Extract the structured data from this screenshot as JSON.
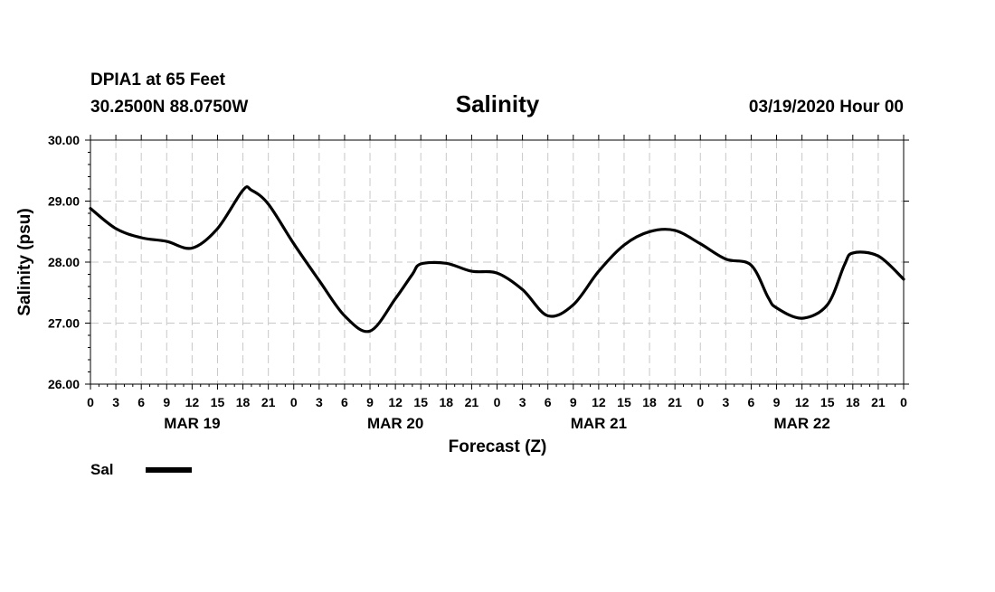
{
  "header": {
    "station": "DPIA1 at 65 Feet",
    "coords": "30.2500N 88.0750W",
    "title": "Salinity",
    "datetime": "03/19/2020 Hour 00"
  },
  "chart_data": {
    "type": "line",
    "title": "Salinity",
    "xlabel": "Forecast (Z)",
    "ylabel": "Salinity (psu)",
    "ylim": [
      26.0,
      30.0
    ],
    "xlim": [
      0,
      96
    ],
    "yticks": [
      "26.00",
      "27.00",
      "28.00",
      "29.00",
      "30.00"
    ],
    "xtick_labels": [
      "0",
      "3",
      "6",
      "9",
      "12",
      "15",
      "18",
      "21",
      "0",
      "3",
      "6",
      "9",
      "12",
      "15",
      "18",
      "21",
      "0",
      "3",
      "6",
      "9",
      "12",
      "15",
      "18",
      "21",
      "0",
      "3",
      "6",
      "9",
      "12",
      "15",
      "18",
      "21",
      "0"
    ],
    "day_labels": [
      "MAR 19",
      "MAR 20",
      "MAR 21",
      "MAR 22"
    ],
    "grid": true,
    "legend_position": "bottom-left",
    "series": [
      {
        "name": "Sal",
        "color": "#000000",
        "x": [
          0,
          3,
          6,
          9,
          12,
          15,
          18,
          19,
          21,
          24,
          27,
          30,
          33,
          36,
          38,
          39,
          42,
          45,
          48,
          51,
          54,
          57,
          60,
          63,
          66,
          69,
          72,
          75,
          78,
          80,
          81,
          84,
          87,
          89,
          90,
          93,
          96
        ],
        "y": [
          28.88,
          28.55,
          28.4,
          28.34,
          28.23,
          28.55,
          29.18,
          29.18,
          28.95,
          28.3,
          27.7,
          27.12,
          26.87,
          27.4,
          27.8,
          27.97,
          27.98,
          27.85,
          27.82,
          27.55,
          27.12,
          27.3,
          27.85,
          28.28,
          28.5,
          28.52,
          28.3,
          28.05,
          27.95,
          27.42,
          27.25,
          27.08,
          27.3,
          27.95,
          28.15,
          28.1,
          27.72
        ]
      }
    ]
  }
}
